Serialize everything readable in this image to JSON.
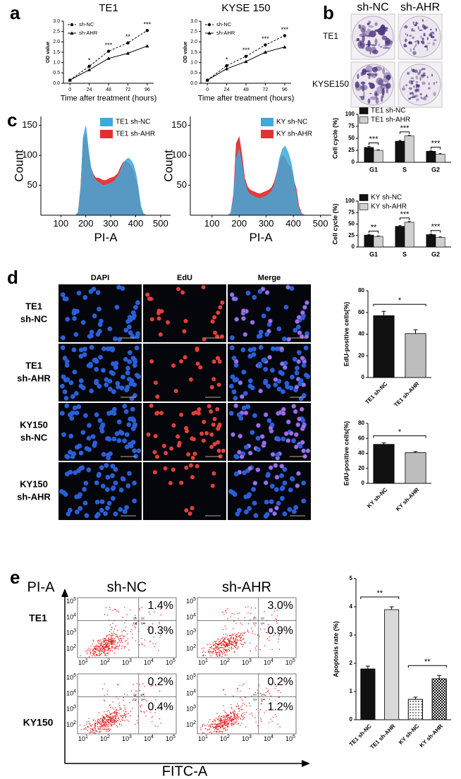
{
  "panel_labels": [
    "a",
    "b",
    "c",
    "d",
    "e"
  ],
  "colony": {
    "columns": [
      "sh-NC",
      "sh-AHR"
    ],
    "rows": [
      "TE1",
      "KYSE150"
    ]
  },
  "microscopy": {
    "columns": [
      "DAPI",
      "EdU",
      "Merge"
    ],
    "rows": [
      [
        "TE1",
        "sh-NC"
      ],
      [
        "TE1",
        "sh-AHR"
      ],
      [
        "KY150",
        "sh-NC"
      ],
      [
        "KY150",
        "sh-AHR"
      ]
    ]
  },
  "flow": {
    "y_label": "PI-A",
    "x_label": "FITC-A",
    "columns": [
      "sh-NC",
      "sh-AHR"
    ],
    "rows": [
      "TE1",
      "KY150"
    ],
    "tick_base": "10",
    "tick_exponents": [
      "1",
      "2",
      "3",
      "4",
      "5"
    ],
    "quadrants": [
      "Q1",
      "Q2",
      "Q3",
      "Q4"
    ],
    "percentages": [
      [
        [
          "1.4%",
          "0.3%"
        ],
        [
          "3.0%",
          "0.9%"
        ]
      ],
      [
        [
          "0.2%",
          "0.4%"
        ],
        [
          "0.2%",
          "1.2%"
        ]
      ]
    ]
  },
  "chart_data": [
    {
      "type": "line",
      "title": "TE1",
      "x_label": "Time after treatment (hours)",
      "y_label": "OD value",
      "x": [
        0,
        24,
        48,
        72,
        96
      ],
      "xlim": [
        -8,
        104
      ],
      "xticks": [
        0,
        24,
        48,
        72,
        96
      ],
      "ylim": [
        0,
        3
      ],
      "yticks": [
        {
          "value": 0,
          "label": "0.0"
        },
        0.5,
        {
          "value": 1,
          "label": "1.0"
        },
        1.5,
        {
          "value": 2,
          "label": "2.0"
        },
        2.5,
        {
          "value": 3,
          "label": "3.0"
        }
      ],
      "legend": "upper left",
      "series": [
        {
          "name": "sh-NC",
          "color": "#000000",
          "dashed": true,
          "marker": "circle",
          "values": [
            0.15,
            0.82,
            1.55,
            1.95,
            2.55
          ]
        },
        {
          "name": "sh-AHR",
          "color": "#000000",
          "dashed": false,
          "marker": "triangle",
          "values": [
            0.15,
            0.65,
            1.2,
            1.45,
            1.8
          ]
        }
      ],
      "annotations": [
        null,
        "*",
        "***",
        "**",
        "***"
      ]
    },
    {
      "type": "line",
      "title": "KYSE 150",
      "x_label": "Time after treatment (hours)",
      "y_label": "OD value",
      "x": [
        0,
        24,
        48,
        72,
        96
      ],
      "xlim": [
        -8,
        104
      ],
      "xticks": [
        0,
        24,
        48,
        72,
        96
      ],
      "ylim": [
        0,
        3
      ],
      "yticks": [
        {
          "value": 0,
          "label": "0.0"
        },
        0.5,
        {
          "value": 1,
          "label": "1.0"
        },
        1.5,
        {
          "value": 2,
          "label": "2.0"
        },
        2.5,
        {
          "value": 3,
          "label": "3.0"
        }
      ],
      "legend": "upper left",
      "series": [
        {
          "name": "sh-NC",
          "color": "#000000",
          "dashed": true,
          "marker": "circle",
          "values": [
            0.15,
            0.85,
            1.3,
            1.85,
            2.3
          ]
        },
        {
          "name": "sh-AHR",
          "color": "#000000",
          "dashed": false,
          "marker": "triangle",
          "values": [
            0.15,
            0.7,
            1.05,
            1.5,
            1.75
          ]
        }
      ],
      "annotations": [
        null,
        "*",
        "***",
        "***",
        "***"
      ]
    },
    {
      "type": "area",
      "x_label": "PI-A",
      "y_label": "Count",
      "x": [
        160,
        170,
        180,
        190,
        200,
        210,
        220,
        230,
        240,
        250,
        260,
        270,
        280,
        290,
        300,
        310,
        320,
        330,
        340,
        350,
        360,
        370,
        380,
        390,
        400,
        410,
        420,
        430,
        440
      ],
      "xlim": [
        20,
        540
      ],
      "xticks": [
        100,
        200,
        300,
        400,
        500
      ],
      "ylim": [
        0,
        165
      ],
      "yticks": [
        50,
        100,
        150
      ],
      "legend": "upper right",
      "series": [
        {
          "name": "TE1 sh-NC",
          "color": "#3fa9dc",
          "values": [
            0,
            5,
            40,
            130,
            148,
            110,
            80,
            65,
            58,
            55,
            52,
            50,
            50,
            52,
            53,
            55,
            60,
            65,
            75,
            85,
            92,
            95,
            92,
            85,
            70,
            45,
            15,
            3,
            0
          ]
        },
        {
          "name": "TE1 sh-AHR",
          "color": "#e03232",
          "values": [
            0,
            5,
            45,
            125,
            135,
            105,
            80,
            68,
            62,
            62,
            60,
            58,
            58,
            60,
            62,
            63,
            66,
            70,
            80,
            88,
            90,
            88,
            83,
            75,
            60,
            40,
            12,
            2,
            0
          ]
        }
      ]
    },
    {
      "type": "area",
      "x_label": "PI-A",
      "y_label": "Count",
      "x": [
        160,
        170,
        180,
        190,
        200,
        210,
        220,
        230,
        240,
        250,
        260,
        270,
        280,
        290,
        300,
        310,
        320,
        330,
        340,
        350,
        360,
        370,
        380,
        390,
        400,
        410,
        420,
        430,
        440
      ],
      "xlim": [
        20,
        540
      ],
      "xticks": [
        100,
        200,
        300,
        400,
        500
      ],
      "ylim": [
        0,
        165
      ],
      "yticks": [
        50,
        100,
        150
      ],
      "legend": "upper right",
      "series": [
        {
          "name": "KY sh-NC",
          "color": "#3fa9dc",
          "values": [
            0,
            3,
            30,
            95,
            110,
            85,
            55,
            40,
            35,
            32,
            30,
            28,
            28,
            30,
            32,
            35,
            40,
            50,
            70,
            95,
            110,
            115,
            105,
            90,
            65,
            35,
            10,
            2,
            0
          ]
        },
        {
          "name": "KY sh-AHR",
          "color": "#e03232",
          "values": [
            0,
            4,
            35,
            120,
            130,
            100,
            62,
            48,
            42,
            40,
            38,
            36,
            36,
            38,
            40,
            42,
            46,
            55,
            72,
            90,
            100,
            95,
            85,
            80,
            60,
            45,
            15,
            3,
            0
          ]
        }
      ]
    },
    {
      "type": "bar",
      "y_label": "Cell cycle (%)",
      "categories": [
        "G1",
        "S",
        "G2"
      ],
      "ylim": [
        0,
        100
      ],
      "yticks": [
        0,
        25,
        50,
        75,
        100
      ],
      "legend": "upper left",
      "series": [
        {
          "name": "TE1 sh-NC",
          "color": "#111111",
          "values": [
            31,
            44,
            23
          ],
          "errors": [
            2,
            1.5,
            1
          ]
        },
        {
          "name": "TE1 sh-AHR",
          "color": "#d0d0d0",
          "values": [
            25,
            55,
            17
          ],
          "errors": [
            1,
            1,
            1
          ]
        }
      ],
      "annotations": [
        "***",
        "***",
        "***"
      ]
    },
    {
      "type": "bar",
      "y_label": "Cell cycle (%)",
      "categories": [
        "G1",
        "S",
        "G2"
      ],
      "ylim": [
        0,
        100
      ],
      "yticks": [
        0,
        25,
        50,
        75,
        100
      ],
      "legend": "upper left",
      "series": [
        {
          "name": "KY sh-NC",
          "color": "#111111",
          "values": [
            26,
            45,
            27
          ],
          "errors": [
            1,
            1.5,
            1
          ]
        },
        {
          "name": "KY sh-AHR",
          "color": "#d0d0d0",
          "values": [
            23,
            54,
            21
          ],
          "errors": [
            1,
            1.5,
            1
          ]
        }
      ],
      "annotations": [
        "**",
        "***",
        "***"
      ]
    },
    {
      "type": "bar",
      "y_label": "EdU-positive cells(%)",
      "categories": [
        "TE1 sh-NC",
        "TE1 sh-AHR"
      ],
      "values": [
        57,
        40.5
      ],
      "errors": [
        4,
        3.5
      ],
      "colors": [
        "#111111",
        "#bdbdbd"
      ],
      "fills": [
        "solid",
        "solid"
      ],
      "ylim": [
        0,
        80
      ],
      "yticks": [
        0,
        20,
        40,
        60,
        80
      ],
      "annotations": [
        "*"
      ]
    },
    {
      "type": "bar",
      "y_label": "EdU-positive cells(%)",
      "categories": [
        "KY sh-NC",
        "KY sh-AHR"
      ],
      "values": [
        52,
        41
      ],
      "errors": [
        2,
        1.5
      ],
      "colors": [
        "#111111",
        "#bdbdbd"
      ],
      "fills": [
        "solid",
        "solid"
      ],
      "ylim": [
        0,
        80
      ],
      "yticks": [
        0,
        20,
        40,
        60,
        80
      ],
      "annotations": [
        "*"
      ]
    },
    {
      "type": "bar",
      "y_label": "Apoptosis rate (%)",
      "categories": [
        "TE1 sh-NC",
        "TE1 sh-AHR",
        "KY sh-NC",
        "KY sh-AHR"
      ],
      "values": [
        1.8,
        3.9,
        0.72,
        1.45
      ],
      "errors": [
        0.1,
        0.1,
        0.08,
        0.12
      ],
      "colors": [
        "#111111",
        "#d9d9d9",
        "#ffffff",
        "#ffffff"
      ],
      "fills": [
        "solid",
        "solid",
        "dots",
        "checks"
      ],
      "ylim": [
        0,
        5
      ],
      "yticks": [
        0,
        1,
        2,
        3,
        4,
        5
      ],
      "annotations": [
        "**",
        "**"
      ]
    }
  ]
}
